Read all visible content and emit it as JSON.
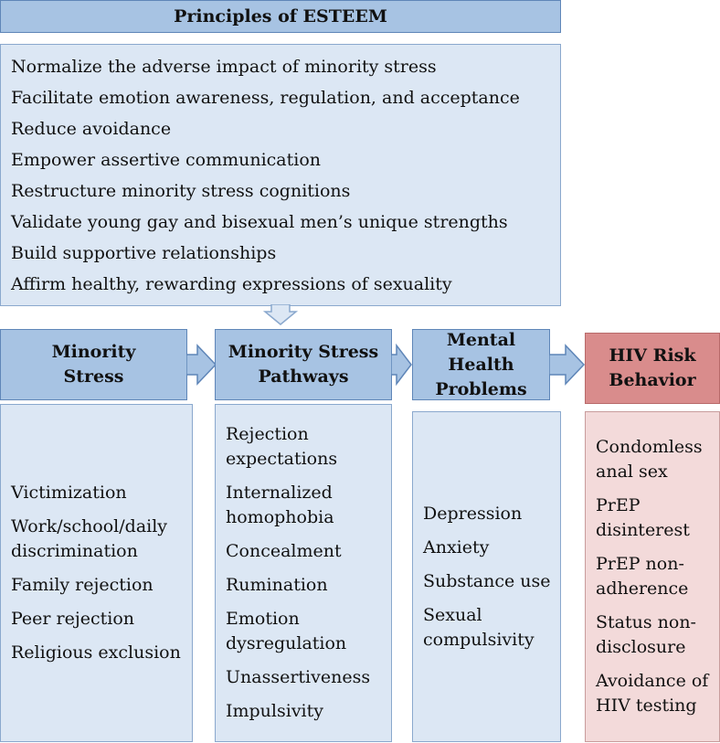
{
  "header": {
    "title": "Principles of ESTEEM"
  },
  "principles": [
    "Normalize the adverse impact of minority stress",
    "Facilitate emotion awareness, regulation, and acceptance",
    "Reduce avoidance",
    "Empower assertive communication",
    "Restructure minority stress cognitions",
    "Validate young gay and bisexual men’s unique strengths",
    "Build supportive relationships",
    "Affirm healthy, rewarding expressions of sexuality"
  ],
  "columns": [
    {
      "title_lines": [
        "Minority",
        "Stress"
      ],
      "items": [
        [
          "Victimization"
        ],
        [
          "Work/school/daily",
          "discrimination"
        ],
        [
          "Family rejection"
        ],
        [
          "Peer rejection"
        ],
        [
          "Religious exclusion"
        ]
      ]
    },
    {
      "title_lines": [
        "Minority Stress",
        "Pathways"
      ],
      "items": [
        [
          "Rejection",
          "expectations"
        ],
        [
          "Internalized",
          "homophobia"
        ],
        [
          "Concealment"
        ],
        [
          "Rumination"
        ],
        [
          "Emotion",
          "dysregulation"
        ],
        [
          "Unassertiveness"
        ],
        [
          "Impulsivity"
        ]
      ]
    },
    {
      "title_lines": [
        "Mental",
        "Health",
        "Problems"
      ],
      "items": [
        [
          "Depression"
        ],
        [
          "Anxiety"
        ],
        [
          "Substance use"
        ],
        [
          "Sexual",
          "compulsivity"
        ]
      ]
    },
    {
      "title_lines": [
        "HIV Risk",
        "Behavior"
      ],
      "items": [
        [
          "Condomless",
          "anal sex"
        ],
        [
          "PrEP",
          "disinterest"
        ],
        [
          "PrEP non-",
          "adherence"
        ],
        [
          "Status non-",
          "disclosure"
        ],
        [
          "Avoidance of",
          "HIV testing"
        ]
      ]
    }
  ]
}
